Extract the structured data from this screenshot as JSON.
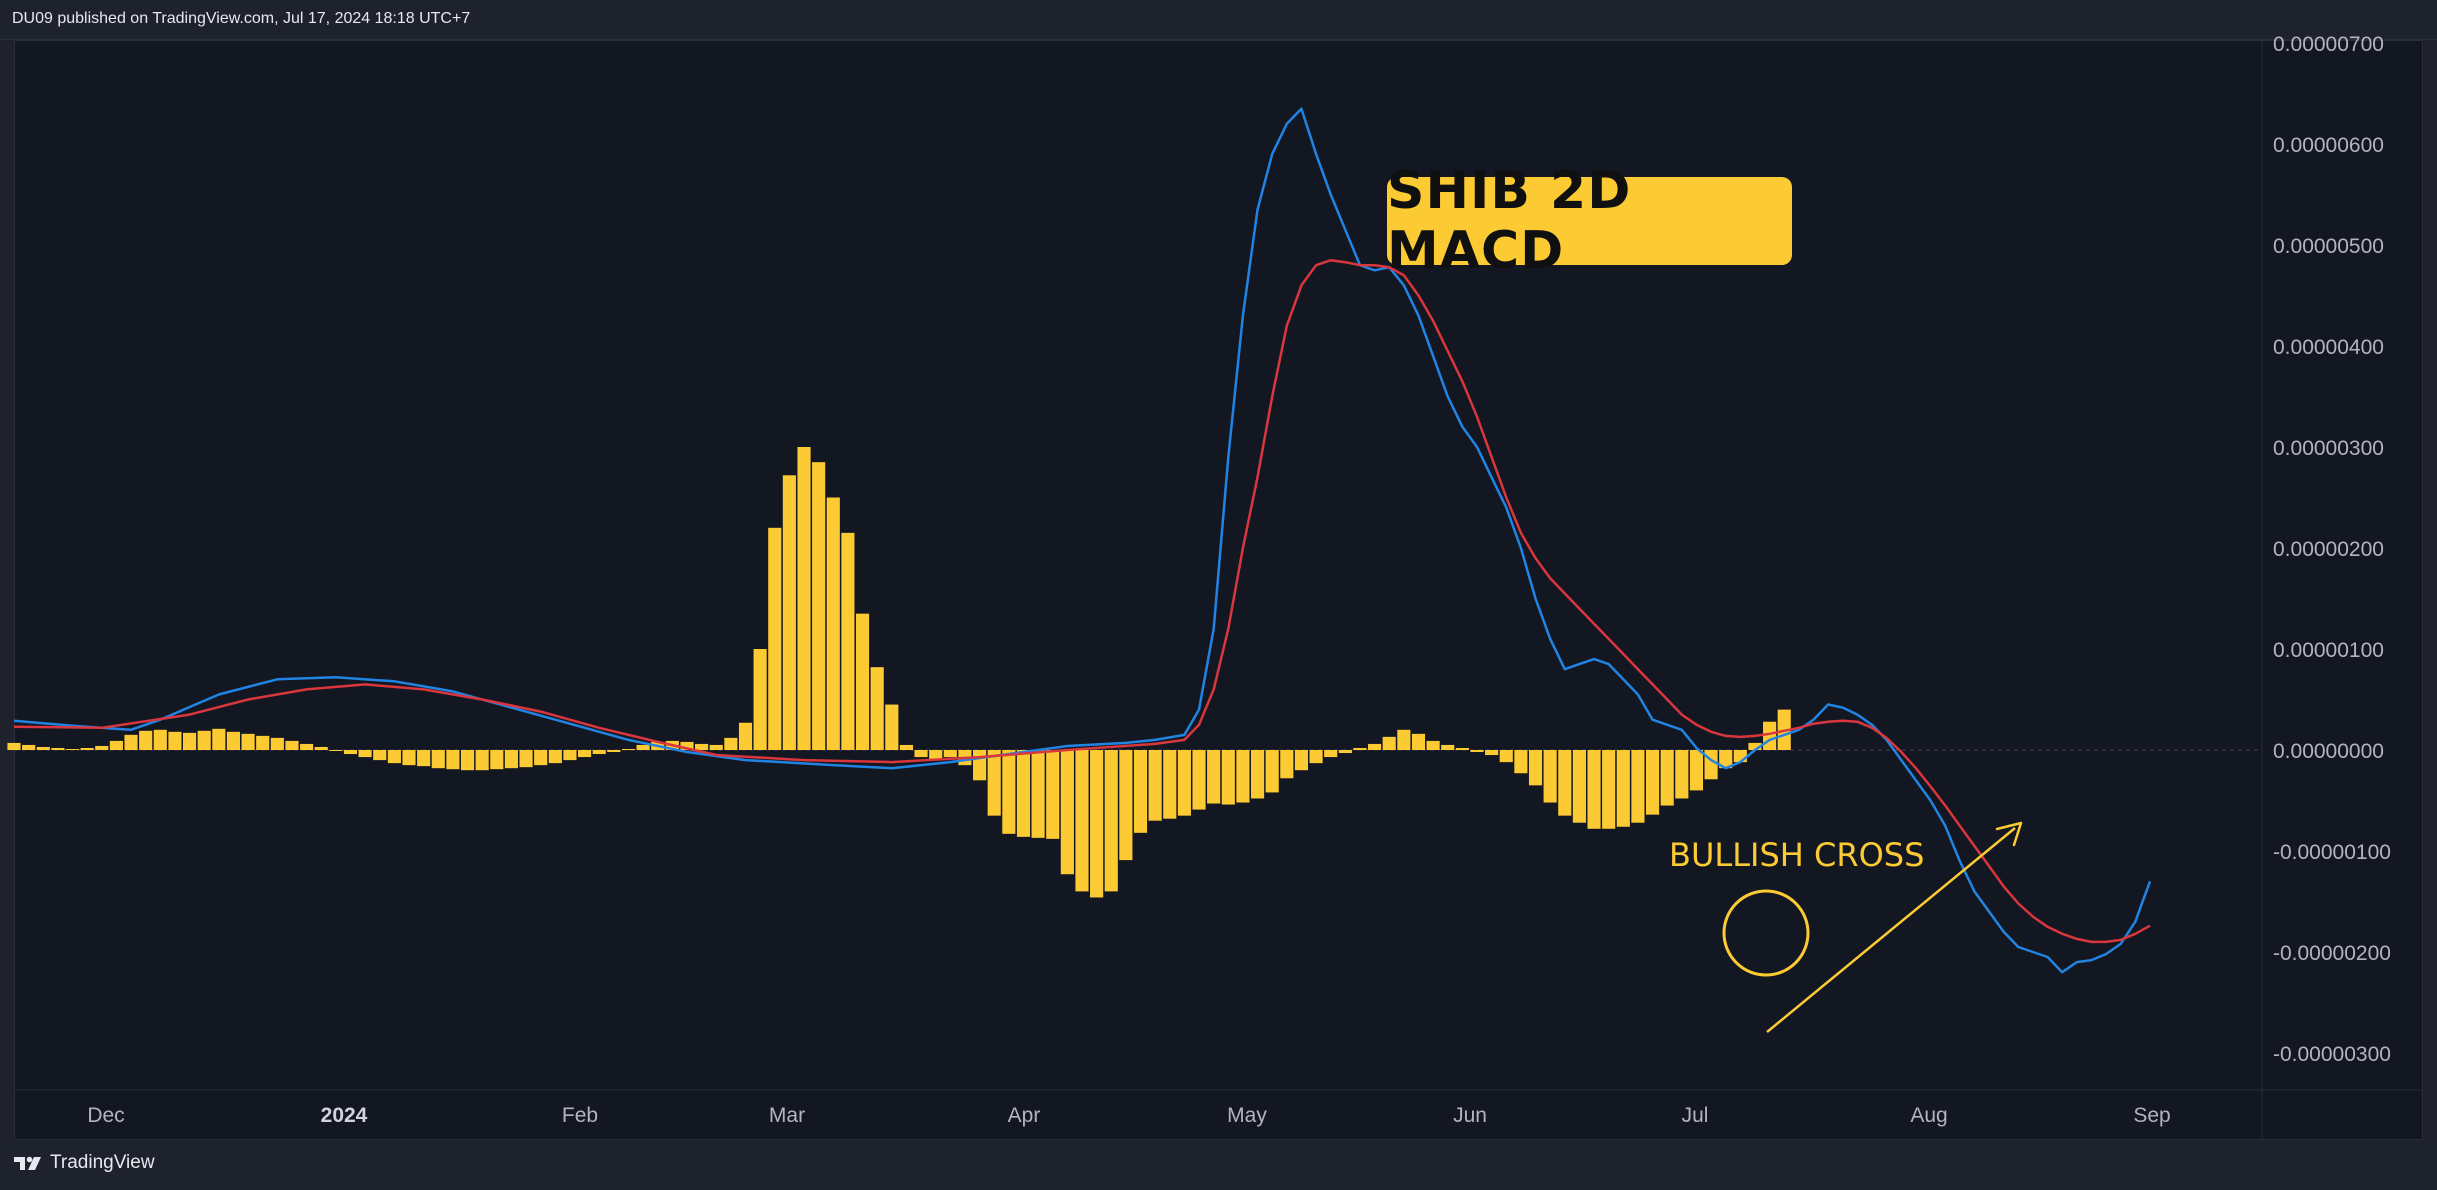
{
  "header": {
    "publish_info": "DU09 published on TradingView.com, Jul 17, 2024 18:18 UTC+7"
  },
  "footer": {
    "brand": "TradingView"
  },
  "badge": {
    "title": "SHIB 2D MACD"
  },
  "annotation": {
    "text": "BULLISH CROSS"
  },
  "colors": {
    "macd_line": "#2184e3",
    "signal_line": "#d9363e",
    "histogram": "#fccb33",
    "background": "#131722",
    "annotation": "#fccb33"
  },
  "icons": {
    "logo": "tradingview-logo-icon",
    "circle": "highlight-circle-icon",
    "arrow": "trend-arrow-icon"
  },
  "chart_data": {
    "type": "bar",
    "title": "SHIB 2D MACD",
    "x_axis": {
      "ticks": [
        {
          "label": "Dec",
          "bold": false
        },
        {
          "label": "2024",
          "bold": true
        },
        {
          "label": "Feb",
          "bold": false
        },
        {
          "label": "Mar",
          "bold": false
        },
        {
          "label": "Apr",
          "bold": false
        },
        {
          "label": "May",
          "bold": false
        },
        {
          "label": "Jun",
          "bold": false
        },
        {
          "label": "Jul",
          "bold": false
        },
        {
          "label": "Aug",
          "bold": false
        },
        {
          "label": "Sep",
          "bold": false
        }
      ]
    },
    "y_axis": {
      "ylim": [
        -3.3e-06,
        7e-06
      ],
      "ticks": [
        "0.00000700",
        "0.00000600",
        "0.00000500",
        "0.00000400",
        "0.00000300",
        "0.00000200",
        "0.00000100",
        "0.00000000",
        "-0.00000100",
        "-0.00000200",
        "-0.00000300"
      ],
      "tick_values": [
        7e-06,
        6e-06,
        5e-06,
        4e-06,
        3e-06,
        2e-06,
        1e-06,
        0,
        -1e-06,
        -2e-06,
        -3e-06
      ]
    },
    "x_range": [
      0,
      156
    ],
    "series": [
      {
        "kind": "histogram",
        "x_start": 0,
        "values": [
          0.07,
          0.05,
          0.03,
          0.02,
          0.01,
          0.02,
          0.04,
          0.09,
          0.15,
          0.19,
          0.2,
          0.18,
          0.17,
          0.19,
          0.21,
          0.18,
          0.16,
          0.14,
          0.12,
          0.09,
          0.06,
          0.03,
          -0.01,
          -0.04,
          -0.07,
          -0.1,
          -0.13,
          -0.15,
          -0.16,
          -0.18,
          -0.19,
          -0.2,
          -0.2,
          -0.19,
          -0.18,
          -0.17,
          -0.15,
          -0.13,
          -0.1,
          -0.07,
          -0.04,
          -0.02,
          0.01,
          0.05,
          0.08,
          0.09,
          0.08,
          0.06,
          0.05,
          0.12,
          0.27,
          1.0,
          2.2,
          2.72,
          3.0,
          2.85,
          2.5,
          2.15,
          1.35,
          0.82,
          0.45,
          0.05,
          -0.07,
          -0.1,
          -0.07,
          -0.15,
          -0.3,
          -0.65,
          -0.83,
          -0.86,
          -0.87,
          -0.88,
          -1.23,
          -1.4,
          -1.46,
          -1.4,
          -1.09,
          -0.82,
          -0.7,
          -0.68,
          -0.65,
          -0.59,
          -0.53,
          -0.54,
          -0.52,
          -0.48,
          -0.42,
          -0.28,
          -0.2,
          -0.13,
          -0.07,
          -0.03,
          0.02,
          0.06,
          0.13,
          0.2,
          0.16,
          0.09,
          0.05,
          0.02,
          -0.02,
          -0.05,
          -0.12,
          -0.23,
          -0.35,
          -0.52,
          -0.65,
          -0.72,
          -0.78,
          -0.78,
          -0.76,
          -0.72,
          -0.64,
          -0.55,
          -0.48,
          -0.4,
          -0.29,
          -0.18,
          -0.12,
          0.07,
          0.28,
          0.4
        ]
      },
      {
        "kind": "line",
        "name": "MACD",
        "color": "#2184e3",
        "points": [
          [
            0,
            0.29
          ],
          [
            4,
            0.24
          ],
          [
            8,
            0.2
          ],
          [
            10,
            0.3
          ],
          [
            14,
            0.55
          ],
          [
            18,
            0.7
          ],
          [
            22,
            0.72
          ],
          [
            26,
            0.68
          ],
          [
            30,
            0.58
          ],
          [
            34,
            0.42
          ],
          [
            38,
            0.26
          ],
          [
            42,
            0.1
          ],
          [
            46,
            -0.02
          ],
          [
            50,
            -0.1
          ],
          [
            56,
            -0.15
          ],
          [
            60,
            -0.18
          ],
          [
            64,
            -0.12
          ],
          [
            68,
            -0.04
          ],
          [
            72,
            0.04
          ],
          [
            76,
            0.07
          ],
          [
            78,
            0.1
          ],
          [
            80,
            0.15
          ],
          [
            81,
            0.4
          ],
          [
            82,
            1.2
          ],
          [
            83,
            2.9
          ],
          [
            84,
            4.3
          ],
          [
            85,
            5.35
          ],
          [
            86,
            5.9
          ],
          [
            87,
            6.2
          ],
          [
            88,
            6.35
          ],
          [
            89,
            5.9
          ],
          [
            90,
            5.5
          ],
          [
            91,
            5.15
          ],
          [
            92,
            4.8
          ],
          [
            93,
            4.75
          ],
          [
            94,
            4.78
          ],
          [
            95,
            4.6
          ],
          [
            96,
            4.3
          ],
          [
            97,
            3.9
          ],
          [
            98,
            3.5
          ],
          [
            99,
            3.2
          ],
          [
            100,
            3.0
          ],
          [
            101,
            2.7
          ],
          [
            102,
            2.4
          ],
          [
            103,
            2.0
          ],
          [
            104,
            1.5
          ],
          [
            105,
            1.1
          ],
          [
            106,
            0.8
          ],
          [
            107,
            0.85
          ],
          [
            108,
            0.9
          ],
          [
            109,
            0.85
          ],
          [
            110,
            0.7
          ],
          [
            111,
            0.55
          ],
          [
            112,
            0.3
          ],
          [
            113,
            0.25
          ],
          [
            114,
            0.2
          ],
          [
            115,
            0.02
          ],
          [
            116,
            -0.1
          ],
          [
            117,
            -0.18
          ],
          [
            118,
            -0.12
          ],
          [
            119,
            0.0
          ],
          [
            120,
            0.1
          ],
          [
            121,
            0.15
          ],
          [
            122,
            0.2
          ],
          [
            123,
            0.3
          ],
          [
            124,
            0.45
          ],
          [
            125,
            0.42
          ],
          [
            126,
            0.35
          ],
          [
            127,
            0.25
          ],
          [
            128,
            0.1
          ],
          [
            129,
            -0.1
          ],
          [
            130,
            -0.3
          ],
          [
            131,
            -0.5
          ],
          [
            132,
            -0.75
          ],
          [
            133,
            -1.1
          ],
          [
            134,
            -1.4
          ],
          [
            135,
            -1.6
          ],
          [
            136,
            -1.8
          ],
          [
            137,
            -1.95
          ],
          [
            138,
            -2.0
          ],
          [
            139,
            -2.05
          ],
          [
            140,
            -2.2
          ],
          [
            141,
            -2.1
          ],
          [
            142,
            -2.08
          ],
          [
            143,
            -2.02
          ],
          [
            144,
            -1.92
          ],
          [
            145,
            -1.7
          ],
          [
            146,
            -1.3
          ]
        ]
      },
      {
        "kind": "line",
        "name": "Signal",
        "color": "#d9363e",
        "points": [
          [
            0,
            0.23
          ],
          [
            6,
            0.22
          ],
          [
            12,
            0.35
          ],
          [
            16,
            0.5
          ],
          [
            20,
            0.6
          ],
          [
            24,
            0.65
          ],
          [
            28,
            0.6
          ],
          [
            32,
            0.5
          ],
          [
            36,
            0.38
          ],
          [
            40,
            0.22
          ],
          [
            44,
            0.08
          ],
          [
            48,
            -0.05
          ],
          [
            54,
            -0.1
          ],
          [
            60,
            -0.12
          ],
          [
            66,
            -0.07
          ],
          [
            72,
            0.0
          ],
          [
            78,
            0.06
          ],
          [
            80,
            0.1
          ],
          [
            81,
            0.25
          ],
          [
            82,
            0.6
          ],
          [
            83,
            1.2
          ],
          [
            84,
            2.0
          ],
          [
            85,
            2.7
          ],
          [
            86,
            3.5
          ],
          [
            87,
            4.2
          ],
          [
            88,
            4.6
          ],
          [
            89,
            4.8
          ],
          [
            90,
            4.85
          ],
          [
            91,
            4.83
          ],
          [
            92,
            4.8
          ],
          [
            93,
            4.8
          ],
          [
            94,
            4.78
          ],
          [
            95,
            4.7
          ],
          [
            96,
            4.5
          ],
          [
            97,
            4.25
          ],
          [
            98,
            3.95
          ],
          [
            99,
            3.65
          ],
          [
            100,
            3.3
          ],
          [
            101,
            2.9
          ],
          [
            102,
            2.5
          ],
          [
            103,
            2.15
          ],
          [
            104,
            1.9
          ],
          [
            105,
            1.7
          ],
          [
            106,
            1.55
          ],
          [
            107,
            1.4
          ],
          [
            108,
            1.25
          ],
          [
            109,
            1.1
          ],
          [
            110,
            0.95
          ],
          [
            111,
            0.8
          ],
          [
            112,
            0.65
          ],
          [
            113,
            0.5
          ],
          [
            114,
            0.35
          ],
          [
            115,
            0.25
          ],
          [
            116,
            0.18
          ],
          [
            117,
            0.14
          ],
          [
            118,
            0.13
          ],
          [
            119,
            0.14
          ],
          [
            120,
            0.16
          ],
          [
            121,
            0.19
          ],
          [
            122,
            0.22
          ],
          [
            123,
            0.26
          ],
          [
            124,
            0.28
          ],
          [
            125,
            0.29
          ],
          [
            126,
            0.28
          ],
          [
            127,
            0.22
          ],
          [
            128,
            0.12
          ],
          [
            129,
            -0.02
          ],
          [
            130,
            -0.18
          ],
          [
            131,
            -0.36
          ],
          [
            132,
            -0.55
          ],
          [
            133,
            -0.75
          ],
          [
            134,
            -0.95
          ],
          [
            135,
            -1.15
          ],
          [
            136,
            -1.35
          ],
          [
            137,
            -1.52
          ],
          [
            138,
            -1.65
          ],
          [
            139,
            -1.75
          ],
          [
            140,
            -1.82
          ],
          [
            141,
            -1.87
          ],
          [
            142,
            -1.9
          ],
          [
            143,
            -1.9
          ],
          [
            144,
            -1.88
          ],
          [
            145,
            -1.82
          ],
          [
            146,
            -1.74
          ]
        ]
      }
    ],
    "value_scale": 1e-06,
    "grid": false,
    "legend": "none"
  }
}
